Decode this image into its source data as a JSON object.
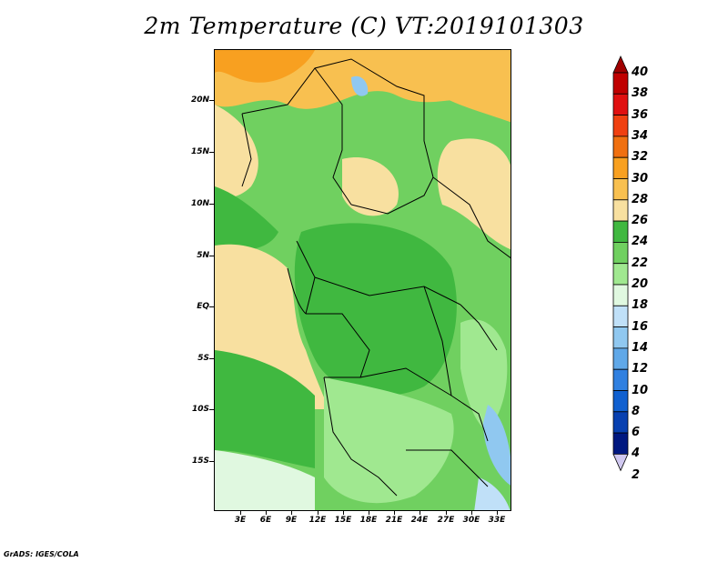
{
  "title": "2m Temperature (C) VT:2019101303",
  "credit": "GrADS: IGES/COLA",
  "lat_labels": [
    "20N",
    "15N",
    "10N",
    "5N",
    "EQ",
    "5S",
    "10S",
    "15S"
  ],
  "lon_labels": [
    "3E",
    "6E",
    "9E",
    "12E",
    "15E",
    "18E",
    "21E",
    "24E",
    "27E",
    "30E",
    "33E"
  ],
  "colorbar": {
    "levels": [
      "40",
      "38",
      "36",
      "34",
      "32",
      "30",
      "28",
      "26",
      "24",
      "22",
      "20",
      "18",
      "16",
      "14",
      "12",
      "10",
      "8",
      "6",
      "4",
      "2"
    ],
    "colors": [
      "#a00000",
      "#c00000",
      "#e01010",
      "#f04010",
      "#f07010",
      "#f8a020",
      "#f8c050",
      "#f8e0a0",
      "#40b840",
      "#70d060",
      "#a0e890",
      "#e0f8e0",
      "#c0e0f8",
      "#90c8f0",
      "#60a8e8",
      "#3080e0",
      "#1060d0",
      "#0840b0",
      "#001880",
      "#d0c8f0"
    ]
  },
  "map": {
    "lat_range": [
      -20,
      25
    ],
    "lon_range": [
      0,
      35
    ],
    "field": "2m Temperature (C)"
  }
}
